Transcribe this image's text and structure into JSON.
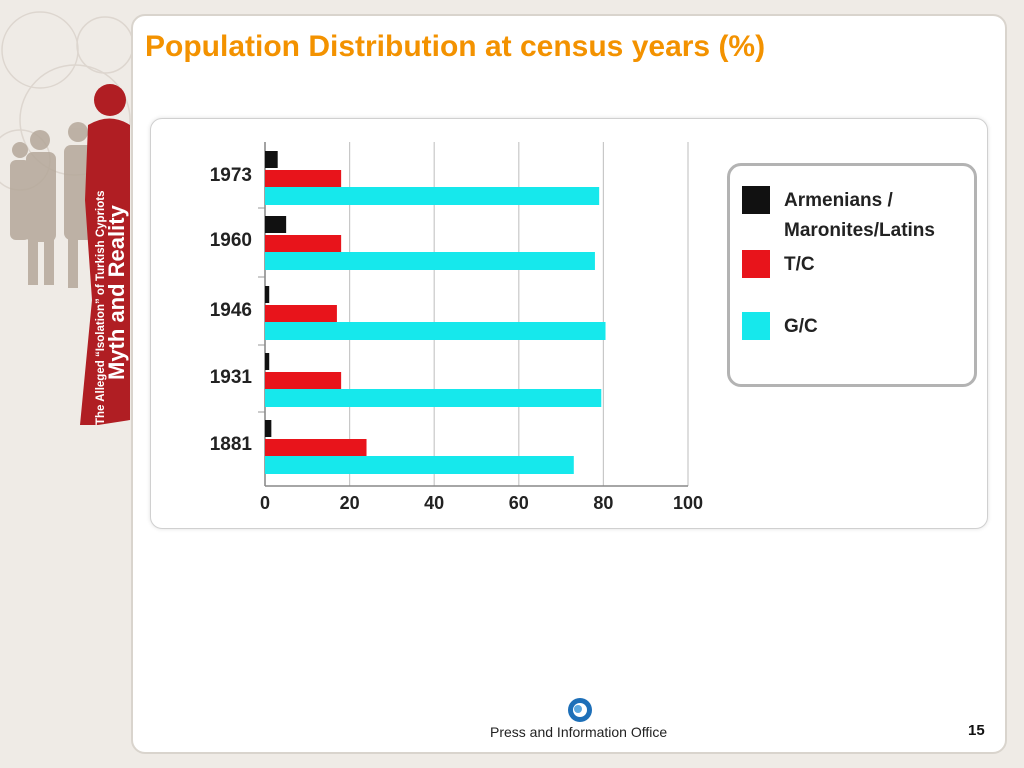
{
  "slide": {
    "title": "Population Distribution at census years (%)",
    "footer_text": "Press and Information Office",
    "page_number": "15",
    "sidebar_text_top": "Myth and Reality",
    "sidebar_text_bottom": "The Alleged “Isolation” of Turkish Cypriots"
  },
  "colors": {
    "title": "#f39200",
    "armenians": "#111111",
    "tc": "#e8141b",
    "gc": "#16e8ec",
    "sidebar_red": "#b01e23"
  },
  "chart_data": {
    "type": "bar",
    "orientation": "horizontal",
    "categories": [
      "1973",
      "1960",
      "1946",
      "1931",
      "1881"
    ],
    "series": [
      {
        "name": "Armenians / Maronites/Latins",
        "values": [
          3,
          5,
          1,
          1,
          1.5
        ]
      },
      {
        "name": "T/C",
        "values": [
          18,
          18,
          17,
          18,
          24
        ]
      },
      {
        "name": "G/C",
        "values": [
          79,
          78,
          80.5,
          79.5,
          73
        ]
      }
    ],
    "xlim": [
      0,
      100
    ],
    "xticks": [
      "0",
      "20",
      "40",
      "60",
      "80",
      "100"
    ],
    "grid": true,
    "legend_position": "right"
  }
}
